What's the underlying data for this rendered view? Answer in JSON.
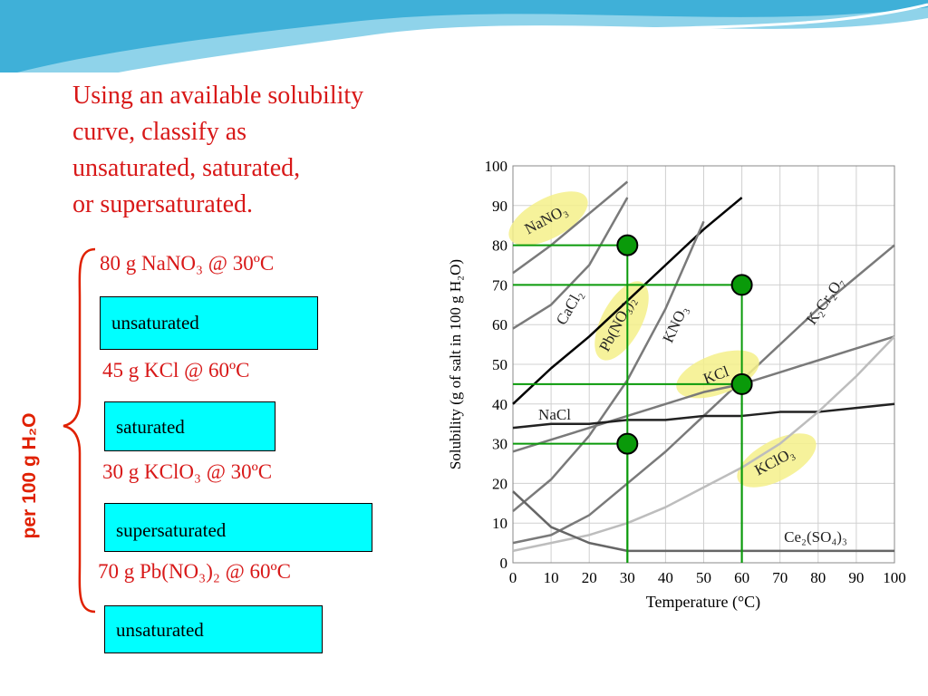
{
  "slide": {
    "title_lines": [
      "Using an available solubility",
      "curve, classify as",
      "unsaturated, saturated,",
      "or supersaturated."
    ],
    "side_label": "per 100 g H₂O",
    "items": [
      {
        "question": "80 g NaNO₃ @ 30ºC",
        "answer": "unsaturated"
      },
      {
        "question": "45 g KCl @ 60ºC",
        "answer": "saturated"
      },
      {
        "question": "30 g KClO₃ @ 30ºC",
        "answer": "supersaturated"
      },
      {
        "question": "70 g Pb(NO₃)₂ @ 60ºC",
        "answer": "unsaturated"
      }
    ]
  },
  "chart_data": {
    "type": "line",
    "xlabel": "Temperature (°C)",
    "ylabel": "Solubility (g of salt in 100 g H₂O)",
    "x": [
      0,
      10,
      20,
      30,
      40,
      50,
      60,
      70,
      80,
      90,
      100
    ],
    "xlim": [
      0,
      100
    ],
    "xticks": [
      0,
      10,
      20,
      30,
      40,
      50,
      60,
      70,
      80,
      90,
      100
    ],
    "ylim": [
      0,
      100
    ],
    "yticks": [
      0,
      10,
      20,
      30,
      40,
      50,
      60,
      70,
      80,
      90,
      100
    ],
    "series": [
      {
        "name": "NaNO₃",
        "color": "#7a7a7a",
        "highlighted": true,
        "values": [
          73,
          80,
          88,
          96,
          null,
          null,
          null,
          null,
          null,
          null,
          null
        ]
      },
      {
        "name": "CaCl₂",
        "color": "#7a7a7a",
        "highlighted": false,
        "values": [
          59,
          65,
          75,
          92,
          null,
          null,
          null,
          null,
          null,
          null,
          null
        ]
      },
      {
        "name": "Pb(NO₃)₂",
        "color": "#000000",
        "highlighted": true,
        "values": [
          40,
          49,
          57,
          66,
          75,
          84,
          92,
          null,
          null,
          null,
          null
        ]
      },
      {
        "name": "KNO₃",
        "color": "#7a7a7a",
        "highlighted": false,
        "values": [
          13,
          21,
          32,
          46,
          64,
          86,
          null,
          null,
          null,
          null,
          null
        ]
      },
      {
        "name": "K₂Cr₂O₇",
        "color": "#7a7a7a",
        "highlighted": false,
        "values": [
          5,
          7,
          12,
          20,
          28,
          37,
          46,
          55,
          64,
          72,
          80
        ]
      },
      {
        "name": "KCl",
        "color": "#7a7a7a",
        "highlighted": true,
        "values": [
          28,
          31,
          34,
          37,
          40,
          43,
          45,
          48,
          51,
          54,
          57
        ]
      },
      {
        "name": "NaCl",
        "color": "#222222",
        "highlighted": false,
        "values": [
          34,
          35,
          35,
          36,
          36,
          37,
          37,
          38,
          38,
          39,
          40
        ]
      },
      {
        "name": "KClO₃",
        "color": "#bdbdbd",
        "highlighted": true,
        "values": [
          3,
          5,
          7,
          10,
          14,
          19,
          24,
          30,
          38,
          47,
          57
        ]
      },
      {
        "name": "Ce₂(SO₄)₃",
        "color": "#666666",
        "highlighted": false,
        "values": [
          18,
          9,
          5,
          3,
          3,
          3,
          3,
          3,
          3,
          3,
          3
        ]
      }
    ],
    "markers": {
      "color": "#0a9a0a",
      "x": [
        30,
        60,
        60,
        30
      ],
      "y": [
        80,
        70,
        45,
        30
      ]
    }
  }
}
